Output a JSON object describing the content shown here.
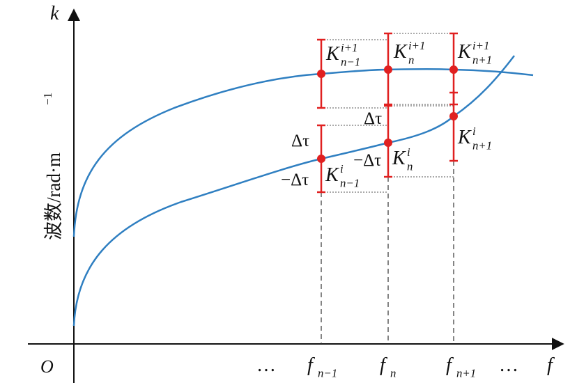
{
  "axes": {
    "y_symbol": "k",
    "x_symbol": "f",
    "origin": "O",
    "y_title": {
      "base": "波数/rad·m",
      "sup": "−1"
    }
  },
  "x_ticks": [
    {
      "base": "…"
    },
    {
      "base": "f",
      "sub": "n−1"
    },
    {
      "base": "f",
      "sub": "n"
    },
    {
      "base": "f",
      "sub": "n+1"
    },
    {
      "base": "…"
    }
  ],
  "points": [
    {
      "base": "K",
      "sup": "i+1",
      "sub": "n−1"
    },
    {
      "base": "K",
      "sup": "i+1",
      "sub": "n"
    },
    {
      "base": "K",
      "sup": "i+1",
      "sub": "n+1"
    },
    {
      "base": "K",
      "sup": "i",
      "sub": "n−1"
    },
    {
      "base": "K",
      "sup": "i",
      "sub": "n"
    },
    {
      "base": "K",
      "sup": "i",
      "sub": "n+1"
    }
  ],
  "deltas": [
    "Δτ",
    "−Δτ",
    "Δτ",
    "−Δτ"
  ]
}
